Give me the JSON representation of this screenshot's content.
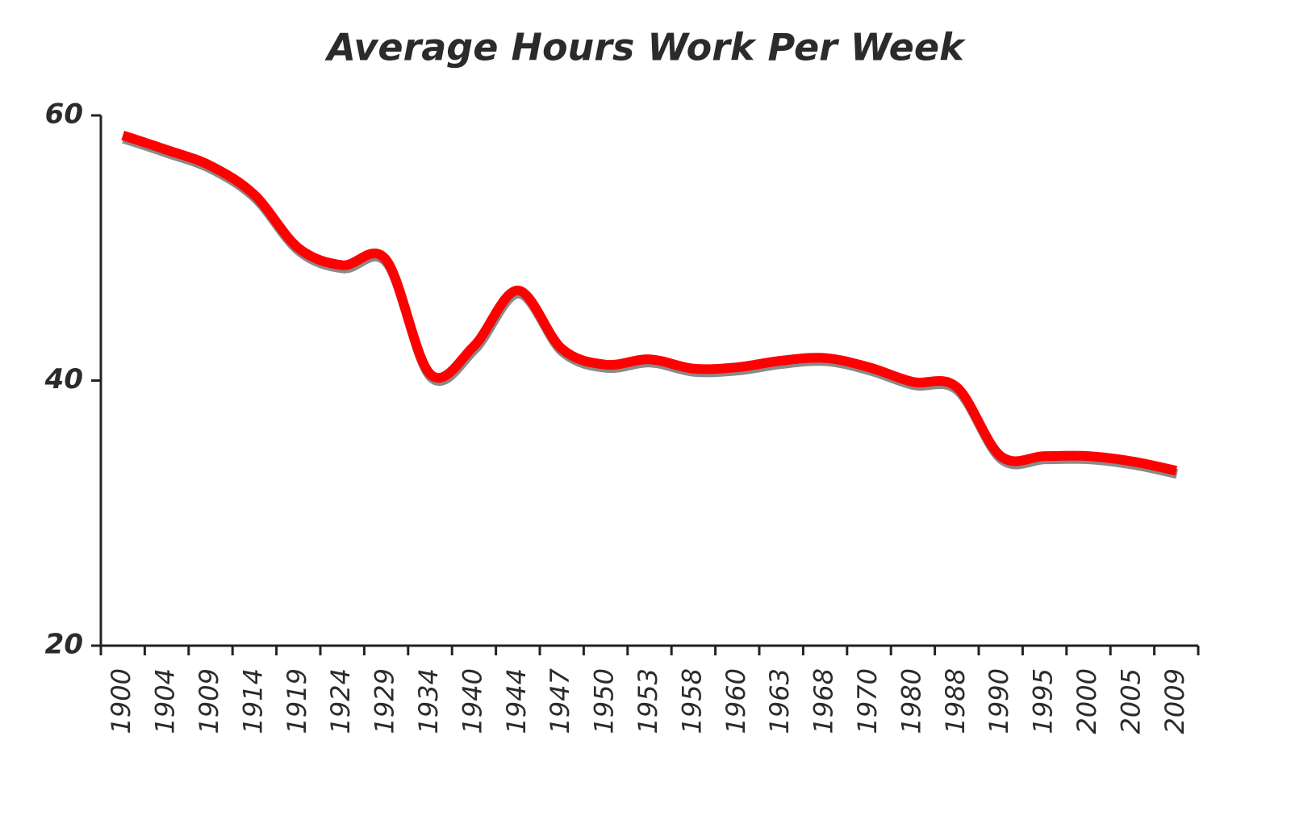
{
  "chart_data": {
    "type": "line",
    "title": "Average Hours Work Per Week",
    "categories": [
      "1900",
      "1904",
      "1909",
      "1914",
      "1919",
      "1924",
      "1929",
      "1934",
      "1940",
      "1944",
      "1947",
      "1950",
      "1953",
      "1958",
      "1960",
      "1963",
      "1968",
      "1970",
      "1980",
      "1988",
      "1990",
      "1995",
      "2000",
      "2005",
      "2009"
    ],
    "values": [
      58.5,
      57.4,
      56.2,
      54.0,
      50.0,
      48.7,
      49.1,
      40.5,
      42.6,
      46.8,
      42.4,
      41.2,
      41.6,
      40.9,
      41.0,
      41.5,
      41.7,
      41.0,
      39.9,
      39.5,
      34.3,
      34.3,
      34.3,
      33.9,
      33.2
    ],
    "color": "#ff0000",
    "ylim": [
      20,
      60
    ],
    "yticks": [
      20,
      40,
      60
    ],
    "grid": false
  }
}
